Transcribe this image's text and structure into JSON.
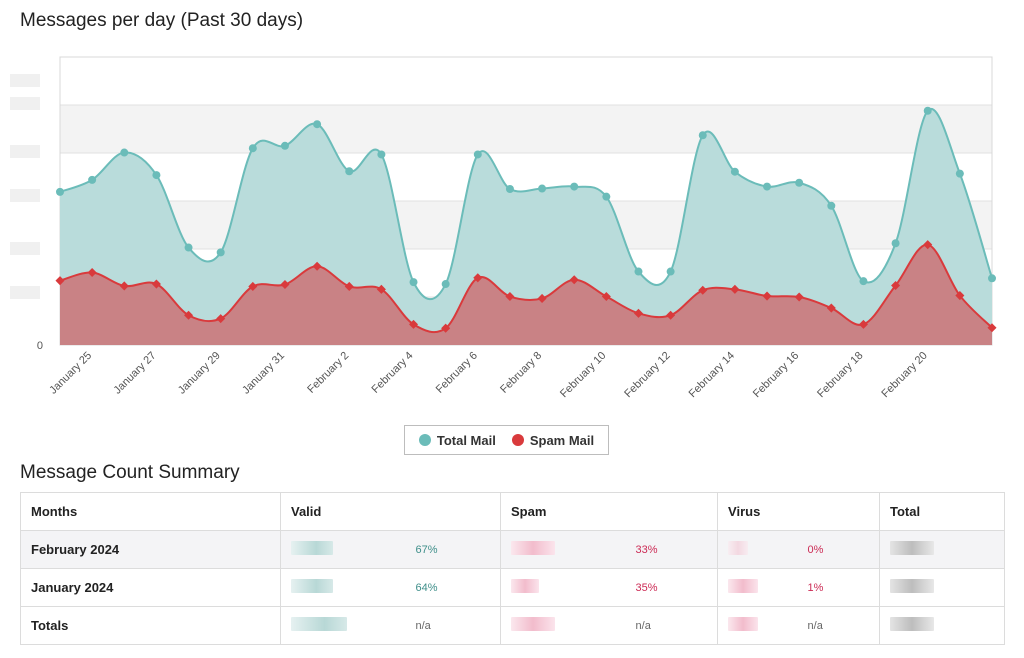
{
  "page": {
    "title": "Messages per day (Past 30 days)",
    "summary_title": "Message Count Summary"
  },
  "chart_data": {
    "type": "area",
    "title": "Messages per day (Past 30 days)",
    "y_tick_labels": [
      "0"
    ],
    "x_tick_labels": [
      "January 25",
      "January 27",
      "January 29",
      "January 31",
      "February 2",
      "February 4",
      "February 6",
      "February 8",
      "February 10",
      "February 12",
      "February 14",
      "February 16",
      "February 18",
      "February 20"
    ],
    "x_tick_indices": [
      1,
      3,
      5,
      7,
      9,
      11,
      13,
      15,
      17,
      19,
      21,
      23,
      25,
      27
    ],
    "ylim": [
      0,
      600
    ],
    "grid": true,
    "legend_placement": "bottom-center",
    "series": [
      {
        "name": "Total Mail",
        "color": "#6bbcb9",
        "fill": "#b9dcdb",
        "values": [
          319,
          344,
          401,
          354,
          203,
          193,
          410,
          415,
          460,
          362,
          397,
          131,
          127,
          397,
          325,
          326,
          330,
          309,
          153,
          153,
          437,
          361,
          330,
          338,
          290,
          133,
          212,
          488,
          357,
          139
        ]
      },
      {
        "name": "Spam Mail",
        "color": "#d93a3c",
        "fill": "#c98285",
        "values": [
          134,
          151,
          123,
          127,
          62,
          55,
          122,
          126,
          164,
          122,
          116,
          43,
          35,
          140,
          101,
          97,
          136,
          101,
          66,
          62,
          114,
          116,
          102,
          100,
          77,
          43,
          124,
          209,
          103,
          36
        ]
      }
    ]
  },
  "legend": {
    "items": [
      {
        "label": "Total Mail",
        "color": "#6bbcb9"
      },
      {
        "label": "Spam Mail",
        "color": "#d93a3c"
      }
    ]
  },
  "table": {
    "headers": [
      "Months",
      "Valid",
      "Spam",
      "Virus",
      "Total"
    ],
    "rows": [
      {
        "label": "February 2024",
        "valid_pct": "67%",
        "spam_pct": "33%",
        "virus_pct": "0%"
      },
      {
        "label": "January 2024",
        "valid_pct": "64%",
        "spam_pct": "35%",
        "virus_pct": "1%"
      },
      {
        "label": "Totals",
        "valid_pct": "n/a",
        "spam_pct": "n/a",
        "virus_pct": "n/a"
      }
    ]
  }
}
